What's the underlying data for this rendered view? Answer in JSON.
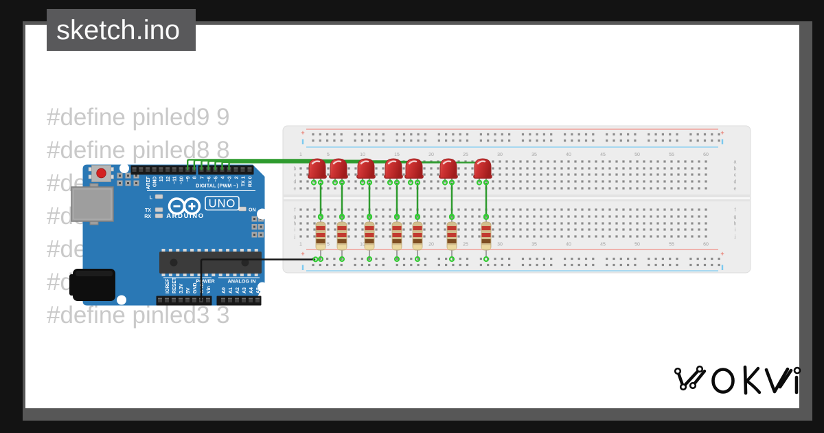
{
  "window": {
    "title": "sketch.ino"
  },
  "code": {
    "lines": [
      "#define pinled9 9",
      "#define pinled8 8",
      "#de",
      "#de",
      "#de",
      "#d",
      "#define pinled3 3"
    ]
  },
  "arduino": {
    "top_pin_labels": [
      "AREF",
      "GND",
      "13",
      "12",
      "~11",
      "~10",
      "~9",
      "8"
    ],
    "top_pin_labels2": [
      "7",
      "~6",
      "~5",
      "4",
      "~3",
      "2",
      "TX 1",
      "RX 0"
    ],
    "digital_caption": "DIGITAL (PWM ~)",
    "indicator_labels": [
      "L",
      "TX",
      "RX"
    ],
    "on_label": "ON",
    "model": "UNO",
    "brand": "ARDUINO",
    "power_caption": "POWER",
    "power_pin_labels": [
      "IOREF",
      "RESET",
      "3.3V",
      "5V",
      "GND",
      "GND",
      "Vin"
    ],
    "analog_caption": "ANALOG IN",
    "analog_pin_labels": [
      "A0",
      "A1",
      "A2",
      "A3",
      "A4",
      "A5"
    ]
  },
  "breadboard": {
    "column_numbers": [
      "1",
      "5",
      "10",
      "15",
      "20",
      "25",
      "30",
      "35",
      "40",
      "45",
      "50",
      "55",
      "60"
    ],
    "column_positions": [
      1,
      5,
      10,
      15,
      20,
      25,
      30,
      35,
      40,
      45,
      50,
      55,
      60
    ],
    "row_letters_top": [
      "a",
      "b",
      "c",
      "d",
      "e"
    ],
    "row_letters_bottom": [
      "f",
      "g",
      "h",
      "i",
      "j"
    ],
    "positive_mark": "+"
  },
  "circuit": {
    "led_count": 7,
    "led_cathode_x": [
      467,
      498,
      538,
      578,
      608,
      658,
      708
    ],
    "signal_pin_x": [
      273.2,
      282.9,
      293.5,
      303.5,
      313.5,
      323.5,
      333.5
    ],
    "resistor_bands": [
      "red",
      "red",
      "brown",
      "gold"
    ]
  },
  "logo": {
    "text": "WOKWI"
  },
  "colors": {
    "background": "#131313",
    "card_shadow": "#575757",
    "card": "#ffffff",
    "tab": "#59595b",
    "code_text": "#c9c9c9",
    "board_blue": "#2a78b5",
    "wire_green": "#2e9b2e",
    "gnd_wire": "#161616",
    "led_red": "#ce3131",
    "connection_green": "#33cc33",
    "rail_red": "#f0a09a",
    "rail_blue": "#8fd2f2"
  }
}
